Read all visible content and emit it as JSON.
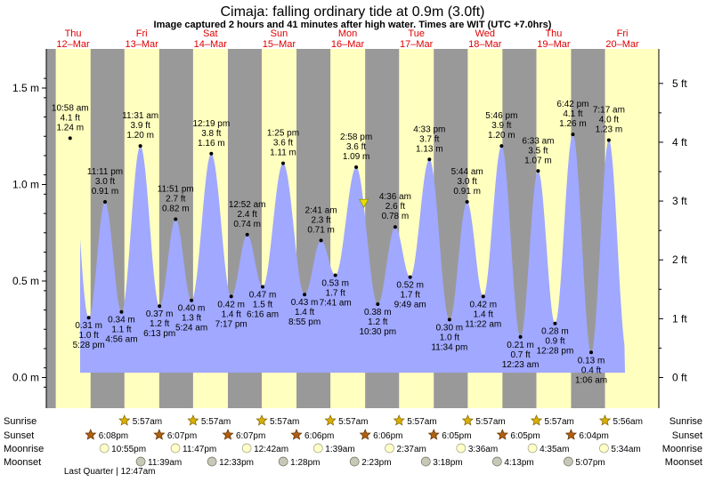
{
  "title": "Cimaja: falling  ordinary tide at 0.9m (3.0ft)",
  "subtitle": "Image captured 2 hours and 41 minutes after high water. Times are WIT (UTC +7.0hrs)",
  "days": [
    {
      "name": "Thu",
      "date": "12–Mar"
    },
    {
      "name": "Fri",
      "date": "13–Mar"
    },
    {
      "name": "Sat",
      "date": "14–Mar"
    },
    {
      "name": "Sun",
      "date": "15–Mar"
    },
    {
      "name": "Mon",
      "date": "16–Mar"
    },
    {
      "name": "Tue",
      "date": "17–Mar"
    },
    {
      "name": "Wed",
      "date": "18–Mar"
    },
    {
      "name": "Thu",
      "date": "19–Mar"
    },
    {
      "name": "Fri",
      "date": "20–Mar"
    }
  ],
  "chart_data": {
    "type": "area",
    "y_left_ticks": [
      "0.0 m",
      "0.5 m",
      "1.0 m",
      "1.5 m"
    ],
    "y_right_ticks": [
      "0 ft",
      "1 ft",
      "2 ft",
      "3 ft",
      "4 ft",
      "5 ft"
    ],
    "ylim": [
      -0.05,
      1.67
    ],
    "x_start_day": "Thu 12-Mar",
    "current": {
      "level_m": 0.9,
      "level_ft": 3.0
    },
    "points": [
      {
        "h": 10.97,
        "m": 1.24,
        "t": "10:58 am",
        "ft": "4.1 ft",
        "mv": "1.24 m",
        "type": "high"
      },
      {
        "h": 17.47,
        "m": 0.31,
        "t": "5:28 pm",
        "ft": "1.0 ft",
        "mv": "0.31 m",
        "type": "low"
      },
      {
        "h": 23.18,
        "m": 0.91,
        "t": "11:11 pm",
        "ft": "3.0 ft",
        "mv": "0.91 m",
        "type": "high"
      },
      {
        "h": 28.93,
        "m": 0.34,
        "t": "4:56 am",
        "ft": "1.1 ft",
        "mv": "0.34 m",
        "type": "low"
      },
      {
        "h": 35.52,
        "m": 1.2,
        "t": "11:31 am",
        "ft": "3.9 ft",
        "mv": "1.20 m",
        "type": "high"
      },
      {
        "h": 42.22,
        "m": 0.37,
        "t": "6:13 pm",
        "ft": "1.2 ft",
        "mv": "0.37 m",
        "type": "low"
      },
      {
        "h": 47.85,
        "m": 0.82,
        "t": "11:51 pm",
        "ft": "2.7 ft",
        "mv": "0.82 m",
        "type": "high"
      },
      {
        "h": 53.4,
        "m": 0.4,
        "t": "5:24 am",
        "ft": "1.3 ft",
        "mv": "0.40 m",
        "type": "low"
      },
      {
        "h": 60.32,
        "m": 1.16,
        "t": "12:19 pm",
        "ft": "3.8 ft",
        "mv": "1.16 m",
        "type": "high"
      },
      {
        "h": 67.28,
        "m": 0.42,
        "t": "7:17 pm",
        "ft": "1.4 ft",
        "mv": "0.42 m",
        "type": "low"
      },
      {
        "h": 72.87,
        "m": 0.74,
        "t": "12:52 am",
        "ft": "2.4 ft",
        "mv": "0.74 m",
        "type": "high"
      },
      {
        "h": 78.27,
        "m": 0.47,
        "t": "6:16 am",
        "ft": "1.5 ft",
        "mv": "0.47 m",
        "type": "low"
      },
      {
        "h": 85.42,
        "m": 1.11,
        "t": "1:25 pm",
        "ft": "3.6 ft",
        "mv": "1.11 m",
        "type": "high"
      },
      {
        "h": 92.92,
        "m": 0.43,
        "t": "8:55 pm",
        "ft": "1.4 ft",
        "mv": "0.43 m",
        "type": "low"
      },
      {
        "h": 98.68,
        "m": 0.71,
        "t": "2:41 am",
        "ft": "2.3 ft",
        "mv": "0.71 m",
        "type": "high"
      },
      {
        "h": 103.68,
        "m": 0.53,
        "t": "7:41 am",
        "ft": "1.7 ft",
        "mv": "0.53 m",
        "type": "low"
      },
      {
        "h": 110.97,
        "m": 1.09,
        "t": "2:58 pm",
        "ft": "3.6 ft",
        "mv": "1.09 m",
        "type": "high"
      },
      {
        "h": 118.5,
        "m": 0.38,
        "t": "10:30 pm",
        "ft": "1.2 ft",
        "mv": "0.38 m",
        "type": "low"
      },
      {
        "h": 124.6,
        "m": 0.78,
        "t": "4:36 am",
        "ft": "2.6 ft",
        "mv": "0.78 m",
        "type": "high"
      },
      {
        "h": 129.82,
        "m": 0.52,
        "t": "9:49 am",
        "ft": "1.7 ft",
        "mv": "0.52 m",
        "type": "low"
      },
      {
        "h": 136.55,
        "m": 1.13,
        "t": "4:33 pm",
        "ft": "3.7 ft",
        "mv": "1.13 m",
        "type": "high"
      },
      {
        "h": 143.57,
        "m": 0.3,
        "t": "11:34 pm",
        "ft": "1.0 ft",
        "mv": "0.30 m",
        "type": "low"
      },
      {
        "h": 149.73,
        "m": 0.91,
        "t": "5:44 am",
        "ft": "3.0 ft",
        "mv": "0.91 m",
        "type": "high"
      },
      {
        "h": 155.37,
        "m": 0.42,
        "t": "11:22 am",
        "ft": "1.4 ft",
        "mv": "0.42 m",
        "type": "low"
      },
      {
        "h": 161.77,
        "m": 1.2,
        "t": "5:46 pm",
        "ft": "3.9 ft",
        "mv": "1.20 m",
        "type": "high"
      },
      {
        "h": 168.38,
        "m": 0.21,
        "t": "12:23 am",
        "ft": "0.7 ft",
        "mv": "0.21 m",
        "type": "low"
      },
      {
        "h": 174.55,
        "m": 1.07,
        "t": "6:33 am",
        "ft": "3.5 ft",
        "mv": "1.07 m",
        "type": "high"
      },
      {
        "h": 180.47,
        "m": 0.28,
        "t": "12:28 pm",
        "ft": "0.9 ft",
        "mv": "0.28 m",
        "type": "low"
      },
      {
        "h": 186.7,
        "m": 1.26,
        "t": "6:42 pm",
        "ft": "4.1 ft",
        "mv": "1.26 m",
        "type": "high"
      },
      {
        "h": 193.1,
        "m": 0.13,
        "t": "1:06 am",
        "ft": "0.4 ft",
        "mv": "0.13 m",
        "type": "low"
      },
      {
        "h": 199.28,
        "m": 1.23,
        "t": "7:17 am",
        "ft": "4.0 ft",
        "mv": "1.23 m",
        "type": "high"
      }
    ],
    "night_ranges": [
      [
        -7.0,
        5.95
      ],
      [
        18.13,
        29.95
      ],
      [
        42.12,
        53.95
      ],
      [
        66.12,
        77.95
      ],
      [
        90.1,
        101.95
      ],
      [
        114.1,
        125.95
      ],
      [
        138.08,
        149.95
      ],
      [
        162.08,
        173.95
      ],
      [
        186.07,
        197.93
      ]
    ]
  },
  "rows": {
    "labels": [
      "Sunrise",
      "Sunset",
      "Moonrise",
      "Moonset"
    ],
    "sunrise": [
      {
        "h": 29.95,
        "t": "5:57am"
      },
      {
        "h": 53.95,
        "t": "5:57am"
      },
      {
        "h": 77.95,
        "t": "5:57am"
      },
      {
        "h": 101.95,
        "t": "5:57am"
      },
      {
        "h": 125.95,
        "t": "5:57am"
      },
      {
        "h": 149.95,
        "t": "5:57am"
      },
      {
        "h": 173.95,
        "t": "5:57am"
      },
      {
        "h": 197.93,
        "t": "5:56am"
      }
    ],
    "sunset": [
      {
        "h": 18.13,
        "t": "6:08pm"
      },
      {
        "h": 42.12,
        "t": "6:07pm"
      },
      {
        "h": 66.12,
        "t": "6:07pm"
      },
      {
        "h": 90.1,
        "t": "6:06pm"
      },
      {
        "h": 114.1,
        "t": "6:06pm"
      },
      {
        "h": 138.08,
        "t": "6:05pm"
      },
      {
        "h": 162.08,
        "t": "6:05pm"
      },
      {
        "h": 186.07,
        "t": "6:04pm"
      }
    ],
    "moonrise": [
      {
        "h": 22.92,
        "t": "10:55pm"
      },
      {
        "h": 47.78,
        "t": "11:47pm"
      },
      {
        "h": 72.7,
        "t": "12:42am"
      },
      {
        "h": 97.65,
        "t": "1:39am"
      },
      {
        "h": 122.62,
        "t": "2:37am"
      },
      {
        "h": 147.6,
        "t": "3:36am"
      },
      {
        "h": 172.58,
        "t": "4:35am"
      },
      {
        "h": 197.57,
        "t": "5:34am"
      }
    ],
    "moonset": [
      {
        "h": 35.65,
        "t": "11:39am"
      },
      {
        "h": 60.55,
        "t": "12:33pm"
      },
      {
        "h": 85.47,
        "t": "1:28pm"
      },
      {
        "h": 110.38,
        "t": "2:23pm"
      },
      {
        "h": 135.3,
        "t": "3:18pm"
      },
      {
        "h": 160.22,
        "t": "4:13pm"
      },
      {
        "h": 185.12,
        "t": "5:07pm"
      }
    ],
    "moon_phase_note": "Last Quarter | 12:47am"
  },
  "colors": {
    "day_bg": "#ffffc0",
    "night_bg": "#999999",
    "water": "#a0a8ff",
    "day_label": "#e00000",
    "sun_icon": "#d8b000",
    "sunset_icon": "#b06010",
    "moonrise_icon": "#ffffc8",
    "moonset_icon": "#c8c8b8",
    "marker": "#e8e000"
  }
}
